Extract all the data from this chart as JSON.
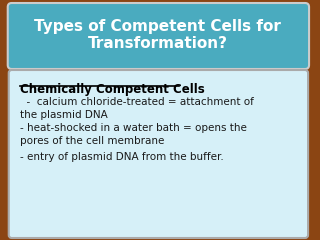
{
  "title_line1": "Types of Competent Cells for",
  "title_line2": "Transformation?",
  "title_bg_color": "#4AABBF",
  "title_text_color": "#FFFFFF",
  "body_bg_color": "#D6F0F8",
  "body_border_color": "#AAAAAA",
  "background_color": "#8B4513",
  "heading": "Chemically Competent Cells",
  "heading_color": "#000000",
  "bullet1_line1": "  -  calcium chloride-treated = attachment of",
  "bullet1_line2": "the plasmid DNA",
  "bullet2_line1": "- heat-shocked in a water bath = opens the",
  "bullet2_line2": "pores of the cell membrane",
  "bullet3": "- entry of plasmid DNA from the buffer.",
  "text_color": "#1A1A1A",
  "font_family": "DejaVu Sans"
}
